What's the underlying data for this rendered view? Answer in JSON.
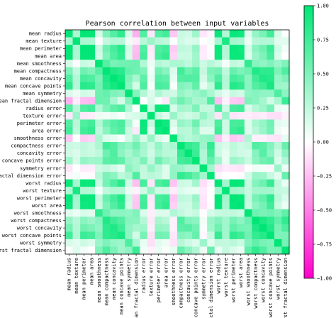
{
  "chart_data": {
    "type": "heatmap",
    "title": "Pearson correlation between input variables",
    "labels": [
      "mean radius",
      "mean texture",
      "mean perimeter",
      "mean area",
      "mean smoothness",
      "mean compactness",
      "mean concavity",
      "mean concave points",
      "mean symmetry",
      "mean fractal dimension",
      "radius error",
      "texture error",
      "perimeter error",
      "area error",
      "smoothness error",
      "compactness error",
      "concavity error",
      "concave points error",
      "symmetry error",
      "fractal dimension error",
      "worst radius",
      "worst texture",
      "worst perimeter",
      "worst area",
      "worst smoothness",
      "worst compactness",
      "worst concavity",
      "worst concave points",
      "worst symmetry",
      "worst fractal dimension"
    ],
    "matrix": [
      [
        1.0,
        0.32,
        1.0,
        0.99,
        0.17,
        0.51,
        0.68,
        0.82,
        0.15,
        -0.31,
        0.68,
        -0.1,
        0.67,
        0.74,
        -0.22,
        0.21,
        0.19,
        0.38,
        -0.1,
        -0.04,
        0.97,
        0.3,
        0.97,
        0.94,
        0.12,
        0.41,
        0.53,
        0.74,
        0.16,
        0.01
      ],
      [
        0.32,
        1.0,
        0.33,
        0.32,
        -0.02,
        0.24,
        0.3,
        0.29,
        0.07,
        -0.08,
        0.28,
        0.39,
        0.28,
        0.26,
        0.01,
        0.19,
        0.14,
        0.16,
        0.01,
        0.05,
        0.35,
        0.91,
        0.36,
        0.34,
        0.08,
        0.28,
        0.3,
        0.3,
        0.11,
        0.12
      ],
      [
        1.0,
        0.33,
        1.0,
        0.99,
        0.21,
        0.56,
        0.72,
        0.85,
        0.18,
        -0.26,
        0.69,
        -0.09,
        0.69,
        0.74,
        -0.2,
        0.25,
        0.23,
        0.41,
        -0.08,
        -0.01,
        0.97,
        0.3,
        0.97,
        0.94,
        0.15,
        0.46,
        0.56,
        0.77,
        0.19,
        0.05
      ],
      [
        0.99,
        0.32,
        0.99,
        1.0,
        0.18,
        0.5,
        0.69,
        0.82,
        0.15,
        -0.28,
        0.73,
        -0.07,
        0.73,
        0.8,
        -0.17,
        0.21,
        0.21,
        0.37,
        -0.07,
        -0.02,
        0.96,
        0.29,
        0.96,
        0.96,
        0.12,
        0.39,
        0.51,
        0.72,
        0.14,
        0.0
      ],
      [
        0.17,
        -0.02,
        0.21,
        0.18,
        1.0,
        0.66,
        0.52,
        0.55,
        0.56,
        0.58,
        0.3,
        0.07,
        0.3,
        0.25,
        0.33,
        0.32,
        0.25,
        0.38,
        0.2,
        0.28,
        0.21,
        0.04,
        0.24,
        0.21,
        0.81,
        0.47,
        0.43,
        0.5,
        0.39,
        0.5
      ],
      [
        0.51,
        0.24,
        0.56,
        0.5,
        0.66,
        1.0,
        0.88,
        0.83,
        0.6,
        0.57,
        0.5,
        0.05,
        0.55,
        0.46,
        0.14,
        0.74,
        0.57,
        0.64,
        0.23,
        0.51,
        0.54,
        0.25,
        0.59,
        0.51,
        0.57,
        0.87,
        0.82,
        0.82,
        0.51,
        0.69
      ],
      [
        0.68,
        0.3,
        0.72,
        0.69,
        0.52,
        0.88,
        1.0,
        0.92,
        0.5,
        0.34,
        0.63,
        0.08,
        0.66,
        0.62,
        0.1,
        0.67,
        0.69,
        0.68,
        0.18,
        0.45,
        0.69,
        0.3,
        0.73,
        0.68,
        0.45,
        0.75,
        0.88,
        0.86,
        0.41,
        0.51
      ],
      [
        0.82,
        0.29,
        0.85,
        0.82,
        0.55,
        0.83,
        0.92,
        1.0,
        0.46,
        0.17,
        0.7,
        0.02,
        0.71,
        0.69,
        0.03,
        0.49,
        0.44,
        0.62,
        0.1,
        0.26,
        0.83,
        0.29,
        0.86,
        0.81,
        0.45,
        0.67,
        0.75,
        0.91,
        0.38,
        0.37
      ],
      [
        0.15,
        0.07,
        0.18,
        0.15,
        0.56,
        0.6,
        0.5,
        0.46,
        1.0,
        0.48,
        0.3,
        0.13,
        0.31,
        0.22,
        0.19,
        0.42,
        0.34,
        0.39,
        0.45,
        0.33,
        0.19,
        0.09,
        0.22,
        0.18,
        0.43,
        0.47,
        0.43,
        0.43,
        0.7,
        0.44
      ],
      [
        -0.31,
        -0.08,
        -0.26,
        -0.28,
        0.58,
        0.57,
        0.34,
        0.17,
        0.48,
        1.0,
        0.0,
        0.16,
        0.04,
        -0.09,
        0.4,
        0.56,
        0.45,
        0.34,
        0.35,
        0.69,
        -0.25,
        -0.05,
        -0.21,
        -0.23,
        0.5,
        0.46,
        0.35,
        0.18,
        0.33,
        0.77
      ],
      [
        0.68,
        0.28,
        0.69,
        0.73,
        0.3,
        0.5,
        0.63,
        0.7,
        0.3,
        0.0,
        1.0,
        0.21,
        0.97,
        0.95,
        0.16,
        0.36,
        0.33,
        0.51,
        0.24,
        0.23,
        0.72,
        0.19,
        0.72,
        0.75,
        0.14,
        0.29,
        0.38,
        0.53,
        0.09,
        0.05
      ],
      [
        -0.1,
        0.39,
        -0.09,
        -0.07,
        0.07,
        0.05,
        0.08,
        0.02,
        0.13,
        0.16,
        0.21,
        1.0,
        0.22,
        0.11,
        0.4,
        0.23,
        0.19,
        0.23,
        0.41,
        0.28,
        -0.11,
        0.41,
        -0.1,
        -0.08,
        -0.07,
        -0.09,
        -0.07,
        -0.12,
        -0.13,
        -0.05
      ],
      [
        0.67,
        0.28,
        0.69,
        0.73,
        0.3,
        0.55,
        0.66,
        0.71,
        0.31,
        0.04,
        0.97,
        0.22,
        1.0,
        0.94,
        0.15,
        0.42,
        0.36,
        0.56,
        0.27,
        0.24,
        0.7,
        0.2,
        0.72,
        0.73,
        0.13,
        0.34,
        0.42,
        0.55,
        0.11,
        0.09
      ],
      [
        0.74,
        0.26,
        0.74,
        0.8,
        0.25,
        0.46,
        0.62,
        0.69,
        0.22,
        -0.09,
        0.95,
        0.11,
        0.94,
        1.0,
        0.08,
        0.28,
        0.27,
        0.42,
        0.13,
        0.13,
        0.76,
        0.2,
        0.76,
        0.81,
        0.13,
        0.28,
        0.39,
        0.54,
        0.07,
        0.02
      ],
      [
        -0.22,
        0.01,
        -0.2,
        -0.17,
        0.33,
        0.14,
        0.1,
        0.03,
        0.19,
        0.4,
        0.16,
        0.4,
        0.15,
        0.08,
        1.0,
        0.34,
        0.27,
        0.33,
        0.41,
        0.43,
        -0.23,
        -0.07,
        -0.22,
        -0.18,
        0.31,
        -0.06,
        -0.06,
        -0.1,
        -0.11,
        0.1
      ],
      [
        0.21,
        0.19,
        0.25,
        0.21,
        0.32,
        0.74,
        0.67,
        0.49,
        0.42,
        0.56,
        0.36,
        0.23,
        0.42,
        0.28,
        0.34,
        1.0,
        0.8,
        0.74,
        0.39,
        0.8,
        0.2,
        0.14,
        0.26,
        0.2,
        0.23,
        0.68,
        0.64,
        0.48,
        0.28,
        0.59
      ],
      [
        0.19,
        0.14,
        0.23,
        0.21,
        0.25,
        0.57,
        0.69,
        0.44,
        0.34,
        0.45,
        0.33,
        0.19,
        0.36,
        0.27,
        0.27,
        0.8,
        1.0,
        0.77,
        0.31,
        0.73,
        0.19,
        0.1,
        0.23,
        0.19,
        0.17,
        0.48,
        0.66,
        0.44,
        0.2,
        0.44
      ],
      [
        0.38,
        0.16,
        0.41,
        0.37,
        0.38,
        0.64,
        0.68,
        0.62,
        0.39,
        0.34,
        0.51,
        0.23,
        0.56,
        0.42,
        0.33,
        0.74,
        0.77,
        1.0,
        0.31,
        0.61,
        0.36,
        0.09,
        0.39,
        0.34,
        0.22,
        0.45,
        0.55,
        0.6,
        0.14,
        0.31
      ],
      [
        -0.1,
        0.01,
        -0.08,
        -0.07,
        0.2,
        0.23,
        0.18,
        0.1,
        0.45,
        0.35,
        0.24,
        0.41,
        0.27,
        0.13,
        0.41,
        0.39,
        0.31,
        0.31,
        1.0,
        0.37,
        -0.13,
        -0.08,
        -0.1,
        -0.11,
        -0.01,
        0.06,
        0.04,
        -0.03,
        0.39,
        0.08
      ],
      [
        -0.04,
        0.05,
        -0.01,
        -0.02,
        0.28,
        0.51,
        0.45,
        0.26,
        0.33,
        0.69,
        0.23,
        0.28,
        0.24,
        0.13,
        0.43,
        0.8,
        0.73,
        0.61,
        0.37,
        1.0,
        -0.04,
        -0.0,
        -0.0,
        -0.02,
        0.17,
        0.39,
        0.38,
        0.22,
        0.11,
        0.59
      ],
      [
        0.97,
        0.35,
        0.97,
        0.96,
        0.21,
        0.54,
        0.69,
        0.83,
        0.19,
        -0.25,
        0.72,
        -0.11,
        0.7,
        0.76,
        -0.23,
        0.2,
        0.19,
        0.36,
        -0.13,
        -0.04,
        1.0,
        0.36,
        0.99,
        0.98,
        0.22,
        0.48,
        0.57,
        0.79,
        0.24,
        0.09
      ],
      [
        0.3,
        0.91,
        0.3,
        0.29,
        0.04,
        0.25,
        0.3,
        0.29,
        0.09,
        -0.05,
        0.19,
        0.41,
        0.2,
        0.2,
        -0.07,
        0.14,
        0.1,
        0.09,
        -0.08,
        -0.0,
        0.36,
        1.0,
        0.37,
        0.35,
        0.23,
        0.36,
        0.37,
        0.36,
        0.23,
        0.22
      ],
      [
        0.97,
        0.36,
        0.97,
        0.96,
        0.24,
        0.59,
        0.73,
        0.86,
        0.22,
        -0.21,
        0.72,
        -0.1,
        0.72,
        0.76,
        -0.22,
        0.26,
        0.23,
        0.39,
        -0.1,
        -0.0,
        0.99,
        0.37,
        1.0,
        0.98,
        0.24,
        0.53,
        0.62,
        0.82,
        0.27,
        0.14
      ],
      [
        0.94,
        0.34,
        0.94,
        0.96,
        0.21,
        0.51,
        0.68,
        0.81,
        0.18,
        -0.23,
        0.75,
        -0.08,
        0.73,
        0.81,
        -0.18,
        0.2,
        0.19,
        0.34,
        -0.11,
        -0.02,
        0.98,
        0.35,
        0.98,
        1.0,
        0.21,
        0.44,
        0.54,
        0.75,
        0.21,
        0.08
      ],
      [
        0.12,
        0.08,
        0.15,
        0.12,
        0.81,
        0.57,
        0.45,
        0.45,
        0.43,
        0.5,
        0.14,
        -0.07,
        0.13,
        0.13,
        0.31,
        0.23,
        0.17,
        0.22,
        -0.01,
        0.17,
        0.22,
        0.23,
        0.24,
        0.21,
        1.0,
        0.57,
        0.52,
        0.55,
        0.49,
        0.62
      ],
      [
        0.41,
        0.28,
        0.46,
        0.39,
        0.47,
        0.87,
        0.75,
        0.67,
        0.47,
        0.46,
        0.29,
        -0.09,
        0.34,
        0.28,
        -0.06,
        0.68,
        0.48,
        0.45,
        0.06,
        0.39,
        0.48,
        0.36,
        0.53,
        0.44,
        0.57,
        1.0,
        0.89,
        0.8,
        0.61,
        0.81
      ],
      [
        0.53,
        0.3,
        0.56,
        0.51,
        0.43,
        0.82,
        0.88,
        0.75,
        0.43,
        0.35,
        0.38,
        -0.07,
        0.42,
        0.39,
        -0.06,
        0.64,
        0.66,
        0.55,
        0.04,
        0.38,
        0.57,
        0.37,
        0.62,
        0.54,
        0.52,
        0.89,
        1.0,
        0.86,
        0.53,
        0.69
      ],
      [
        0.74,
        0.3,
        0.77,
        0.72,
        0.5,
        0.82,
        0.86,
        0.91,
        0.43,
        0.18,
        0.53,
        -0.12,
        0.55,
        0.54,
        -0.1,
        0.48,
        0.44,
        0.6,
        -0.03,
        0.22,
        0.79,
        0.36,
        0.82,
        0.75,
        0.55,
        0.8,
        0.86,
        1.0,
        0.5,
        0.51
      ],
      [
        0.16,
        0.11,
        0.19,
        0.14,
        0.39,
        0.51,
        0.41,
        0.38,
        0.7,
        0.33,
        0.09,
        -0.13,
        0.11,
        0.07,
        -0.11,
        0.28,
        0.2,
        0.14,
        0.39,
        0.11,
        0.24,
        0.23,
        0.27,
        0.21,
        0.49,
        0.61,
        0.53,
        0.5,
        1.0,
        0.54
      ],
      [
        0.01,
        0.12,
        0.05,
        0.0,
        0.5,
        0.69,
        0.51,
        0.37,
        0.44,
        0.77,
        0.05,
        -0.05,
        0.09,
        0.02,
        0.1,
        0.59,
        0.44,
        0.31,
        0.08,
        0.59,
        0.09,
        0.22,
        0.14,
        0.08,
        0.62,
        0.81,
        0.69,
        0.51,
        0.54,
        1.0
      ]
    ],
    "colorbar": {
      "min": -1.0,
      "max": 1.0,
      "ticks": [
        "1.00",
        "0.75",
        "0.50",
        "0.25",
        "0.00",
        "−0.25",
        "−0.50",
        "−0.75",
        "−1.00"
      ],
      "low_color": "#ff00cc",
      "mid_color": "#ffffff",
      "high_color": "#00e676"
    },
    "grid": false
  }
}
